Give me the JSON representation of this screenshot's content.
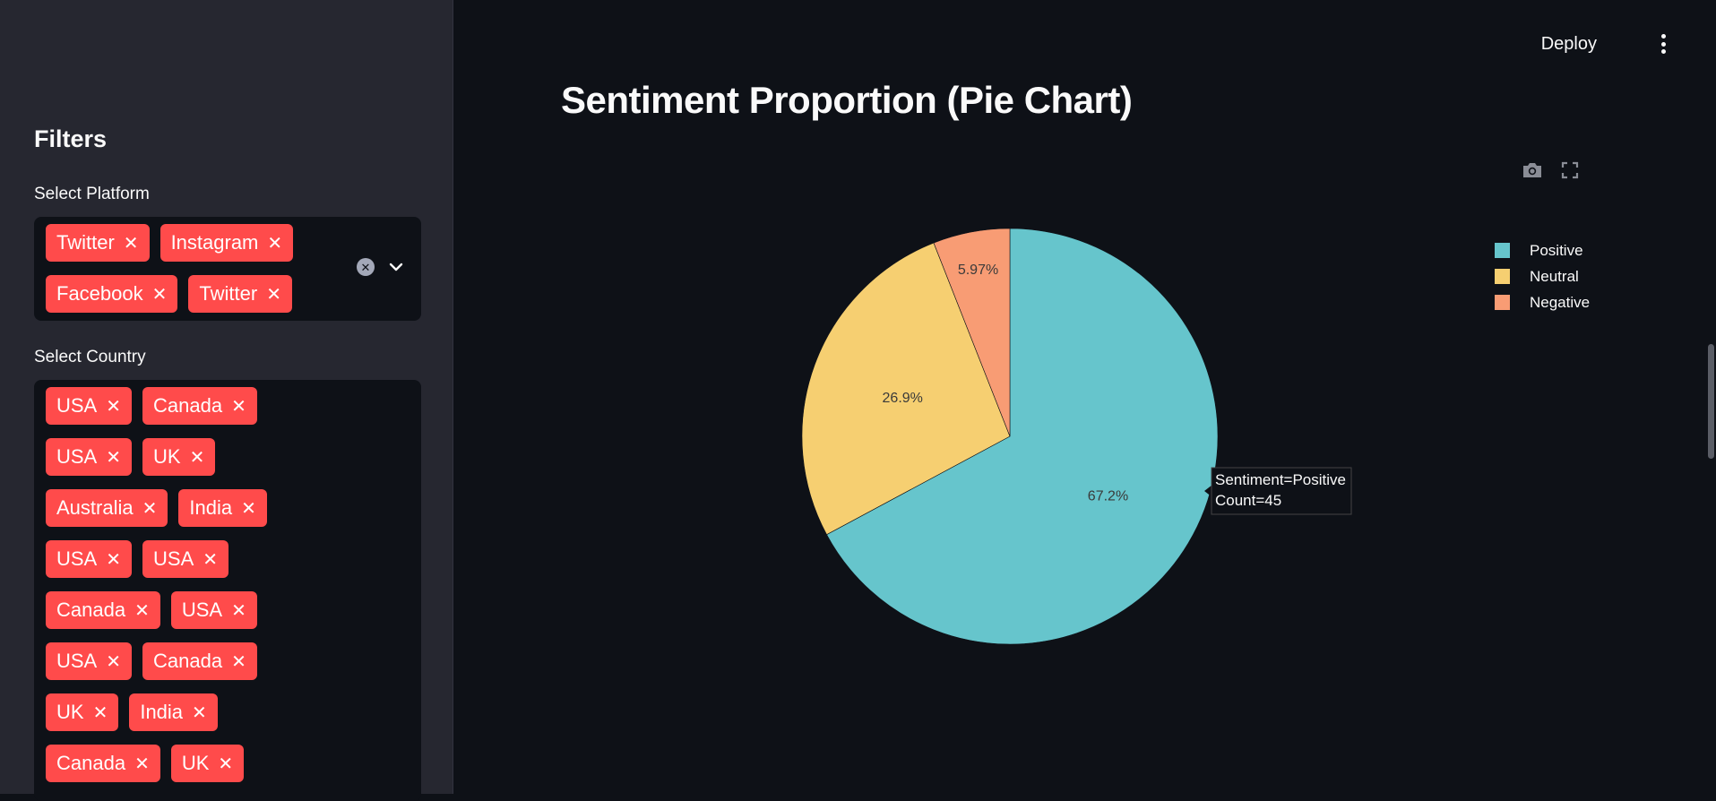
{
  "sidebar": {
    "title": "Filters",
    "platform": {
      "label": "Select Platform",
      "rows": [
        [
          "Twitter",
          "Instagram"
        ],
        [
          "Facebook",
          "Twitter"
        ]
      ]
    },
    "country": {
      "label": "Select Country",
      "rows": [
        [
          "USA",
          "Canada"
        ],
        [
          "USA",
          "UK"
        ],
        [
          "Australia",
          "India"
        ],
        [
          "USA",
          "USA"
        ],
        [
          "Canada",
          "USA"
        ],
        [
          "USA",
          "Canada"
        ],
        [
          "UK",
          "India"
        ],
        [
          "Canada",
          "UK"
        ]
      ]
    },
    "chip_close_glyph": "✕",
    "clear_glyph": "✕"
  },
  "header": {
    "deploy_label": "Deploy"
  },
  "main": {
    "title": "Sentiment Proportion (Pie Chart)"
  },
  "colors": {
    "background": "#0e1117",
    "sidebar": "#262730",
    "chip": "#ff4b4b",
    "positive": "#66c5cc",
    "neutral": "#f6cf71",
    "negative": "#f89c74"
  },
  "chart_data": {
    "type": "pie",
    "title": "",
    "slices": [
      {
        "label": "Positive",
        "value": 45,
        "percent_label": "67.2%",
        "color": "#66c5cc"
      },
      {
        "label": "Neutral",
        "value": 18,
        "percent_label": "26.9%",
        "color": "#f6cf71"
      },
      {
        "label": "Negative",
        "value": 4,
        "percent_label": "5.97%",
        "color": "#f89c74"
      }
    ],
    "legend": [
      "Positive",
      "Neutral",
      "Negative"
    ],
    "legend_position": "top-right",
    "direction": "clockwise",
    "tooltip": {
      "line1": "Sentiment=Positive",
      "line2": "Count=45"
    }
  }
}
